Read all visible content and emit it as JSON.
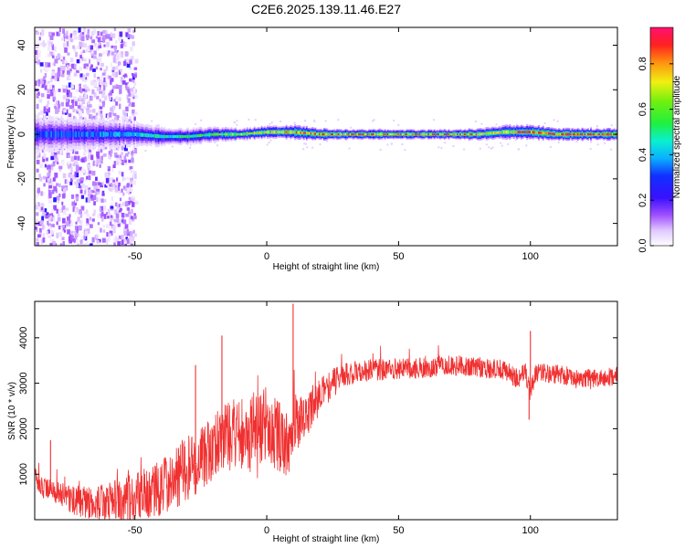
{
  "title": "C2E6.2025.139.11.46.E27",
  "colors": {
    "snr_line": "#f03030",
    "background_wash": "#e6d2ff",
    "band_edge": "#5a14ff",
    "band_mid": "#10c0ff",
    "band_core": "#30ff30",
    "band_peak": "#ff2020"
  },
  "chart_data": [
    {
      "type": "heatmap",
      "xlabel": "Height of straight line (km)",
      "ylabel": "Frequency (Hz)",
      "xlim": [
        -88,
        133
      ],
      "ylim": [
        -50,
        48
      ],
      "xticks": [
        -50,
        0,
        50,
        100
      ],
      "yticks": [
        -40,
        -20,
        0,
        20,
        40
      ],
      "grid": false,
      "colormap": "rainbow",
      "colorbar": {
        "label": "Normalized spectral amplitude",
        "range": [
          0,
          0.96
        ],
        "ticks": [
          0.0,
          0.2,
          0.4,
          0.6,
          0.8
        ]
      },
      "band_profile": {
        "x": [
          -88,
          -75,
          -60,
          -50,
          -40,
          -30,
          -20,
          -10,
          0,
          10,
          20,
          30,
          40,
          50,
          60,
          70,
          80,
          90,
          100,
          110,
          120,
          133
        ],
        "center_frequency": [
          0,
          0,
          0,
          0,
          -1,
          -1,
          0,
          0,
          1,
          1,
          0,
          0,
          0,
          0,
          0,
          0,
          0,
          1,
          1,
          0,
          0,
          0
        ],
        "half_width": [
          8,
          7,
          6,
          5,
          4,
          3.5,
          3,
          2.5,
          2.5,
          3,
          2.5,
          2,
          2,
          2,
          2,
          2,
          2.5,
          3,
          3,
          2.5,
          2.5,
          2.5
        ],
        "peak_amplitude": [
          0.35,
          0.35,
          0.4,
          0.45,
          0.5,
          0.55,
          0.6,
          0.7,
          0.8,
          0.85,
          0.9,
          0.9,
          0.9,
          0.88,
          0.88,
          0.88,
          0.85,
          0.75,
          0.95,
          0.95,
          0.95,
          0.95
        ]
      },
      "scatter_region": {
        "x_range": [
          -88,
          -50
        ],
        "y_range": [
          -50,
          48
        ],
        "amplitude_range": [
          0.02,
          0.15
        ]
      }
    },
    {
      "type": "line",
      "xlabel": "Height of straight line (km)",
      "ylabel": "SNR (10 * v/v)",
      "xlim": [
        -88,
        133
      ],
      "ylim": [
        0,
        4800
      ],
      "xticks": [
        -50,
        0,
        50,
        100
      ],
      "yticks": [
        1000,
        2000,
        3000,
        4000
      ],
      "grid": false,
      "series": [
        {
          "x": [
            -88,
            -85,
            -80,
            -75,
            -70,
            -65,
            -60,
            -55,
            -50,
            -45,
            -40,
            -35,
            -30,
            -25,
            -20,
            -15,
            -10,
            -5,
            0,
            5,
            8,
            10,
            12,
            15,
            20,
            25,
            30,
            40,
            50,
            60,
            70,
            80,
            90,
            95,
            98,
            100,
            102,
            110,
            120,
            133
          ],
          "y": [
            950,
            700,
            600,
            450,
            400,
            350,
            400,
            420,
            500,
            600,
            700,
            900,
            1100,
            1300,
            1700,
            1800,
            1900,
            2000,
            2100,
            1800,
            1600,
            2000,
            2050,
            2300,
            2700,
            3000,
            3200,
            3300,
            3300,
            3350,
            3400,
            3350,
            3300,
            3100,
            3250,
            2800,
            3250,
            3200,
            3100,
            3150
          ],
          "spikes": [
            {
              "x": -82,
              "y": 1750
            },
            {
              "x": -27,
              "y": 3400
            },
            {
              "x": -17,
              "y": 4050
            },
            {
              "x": 10,
              "y": 4750
            },
            {
              "x": 100,
              "y": 4150
            },
            {
              "x": 99.5,
              "y": 2200
            }
          ],
          "noise_amplitude": [
            {
              "x": -88,
              "amp": 200
            },
            {
              "x": -30,
              "amp": 700
            },
            {
              "x": 0,
              "amp": 900
            },
            {
              "x": 20,
              "amp": 400
            },
            {
              "x": 30,
              "amp": 250
            },
            {
              "x": 133,
              "amp": 200
            }
          ]
        }
      ]
    }
  ]
}
